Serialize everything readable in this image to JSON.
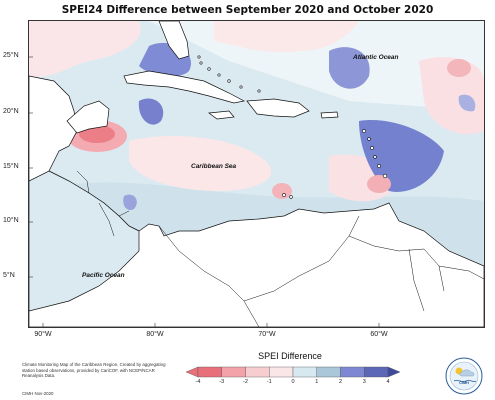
{
  "title": "SPEI24 Difference between September 2020 and October 2020",
  "map": {
    "lat_labels": [
      "25°N",
      "20°N",
      "15°N",
      "10°N",
      "5°N"
    ],
    "lon_labels": [
      "90°W",
      "80°W",
      "70°W",
      "60°W"
    ],
    "oceans": {
      "atlantic": "Atlantic Ocean",
      "caribbean": "Caribbean Sea",
      "pacific": "Pacific Ocean"
    }
  },
  "legend": {
    "title": "SPEI Difference",
    "ticks": [
      "-4",
      "-3",
      "-2",
      "-1",
      "0",
      "1",
      "2",
      "3",
      "4"
    ],
    "colors": [
      "#e8707a",
      "#f2a2a8",
      "#f8cdd0",
      "#fbe6e7",
      "#d6e8f0",
      "#a9c7d9",
      "#7d87d2",
      "#5d67b8"
    ],
    "extend_low": "#e8707a",
    "extend_high": "#3f4a9a"
  },
  "credit": {
    "text": "Climate Monitoring Map of the Caribbean Region. Created by aggregating station based observations, provided by CariCOF, with NCEP/NCAR Reanalysis Data.",
    "date": "CIMH Nov-2020"
  },
  "logo": {
    "text": "CIMH",
    "icon": "cimh-logo-icon"
  }
}
